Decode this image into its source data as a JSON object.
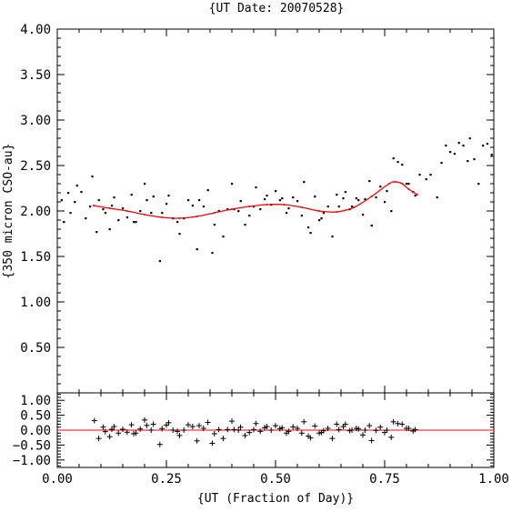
{
  "chart_data": [
    {
      "type": "scatter",
      "panel": "main",
      "title": "{UT Date: 20070528}",
      "xlabel": "",
      "ylabel": "{350 micron CSO-au}",
      "xlim": [
        0.0,
        1.0
      ],
      "ylim": [
        0.0,
        4.0
      ],
      "x_ticks": [
        0.0,
        0.25,
        0.5,
        0.75,
        1.0
      ],
      "y_ticks": [
        "0.50",
        "1.00",
        "1.50",
        "2.00",
        "2.50",
        "3.00",
        "3.50",
        "4.00"
      ],
      "grid": false,
      "series": [
        {
          "kind": "points",
          "color": "#000000",
          "x": [
            0.01,
            0.015,
            0.025,
            0.03,
            0.04,
            0.045,
            0.055,
            0.065,
            0.075,
            0.08,
            0.09,
            0.095,
            0.105,
            0.11,
            0.12,
            0.125,
            0.13,
            0.14,
            0.15,
            0.16,
            0.17,
            0.175,
            0.18,
            0.19,
            0.2,
            0.205,
            0.215,
            0.22,
            0.235,
            0.24,
            0.25,
            0.255,
            0.265,
            0.275,
            0.28,
            0.29,
            0.3,
            0.31,
            0.32,
            0.325,
            0.335,
            0.345,
            0.355,
            0.36,
            0.37,
            0.38,
            0.39,
            0.4,
            0.405,
            0.415,
            0.42,
            0.43,
            0.44,
            0.45,
            0.455,
            0.465,
            0.475,
            0.48,
            0.49,
            0.5,
            0.51,
            0.515,
            0.525,
            0.53,
            0.54,
            0.55,
            0.56,
            0.565,
            0.575,
            0.58,
            0.59,
            0.6,
            0.605,
            0.61,
            0.62,
            0.63,
            0.64,
            0.645,
            0.655,
            0.66,
            0.67,
            0.675,
            0.685,
            0.69,
            0.7,
            0.705,
            0.715,
            0.72,
            0.73,
            0.74,
            0.75,
            0.755,
            0.765,
            0.77,
            0.78,
            0.79,
            0.8,
            0.805,
            0.815,
            0.82,
            0.83,
            0.845,
            0.855,
            0.87,
            0.88,
            0.89,
            0.9,
            0.91,
            0.92,
            0.93,
            0.94,
            0.945,
            0.955,
            0.965,
            0.975,
            0.985,
            0.995
          ],
          "y": [
            2.12,
            1.88,
            2.2,
            1.98,
            2.1,
            2.28,
            2.21,
            1.92,
            2.05,
            2.38,
            1.77,
            2.12,
            2.02,
            1.98,
            1.8,
            2.06,
            2.15,
            1.9,
            2.03,
            1.93,
            2.18,
            1.88,
            1.88,
            2.0,
            2.3,
            2.12,
            1.98,
            2.16,
            1.45,
            1.98,
            2.08,
            2.17,
            1.92,
            1.88,
            1.75,
            1.92,
            2.12,
            2.06,
            1.58,
            2.12,
            2.05,
            2.23,
            1.54,
            1.85,
            2.0,
            1.72,
            2.02,
            2.3,
            2.02,
            2.0,
            2.11,
            1.85,
            1.95,
            2.05,
            2.26,
            2.02,
            2.13,
            2.17,
            2.07,
            2.22,
            2.12,
            2.14,
            1.98,
            2.03,
            2.15,
            2.11,
            1.95,
            2.32,
            1.82,
            1.76,
            2.16,
            1.9,
            1.92,
            1.98,
            2.05,
            1.72,
            2.18,
            2.05,
            2.14,
            2.21,
            2.02,
            2.05,
            2.14,
            2.12,
            1.96,
            2.13,
            2.33,
            1.84,
            2.15,
            2.27,
            2.1,
            2.22,
            2.0,
            2.58,
            2.54,
            2.51,
            2.3,
            2.3,
            2.21,
            2.17,
            2.4,
            2.35,
            2.4,
            2.15,
            2.53,
            2.72,
            2.65,
            2.63,
            2.75,
            2.72,
            2.55,
            2.8,
            2.57,
            2.3,
            2.72,
            2.74,
            2.62
          ]
        },
        {
          "kind": "fit",
          "color": "#ff0000",
          "x": [
            0.083,
            0.12,
            0.16,
            0.2,
            0.24,
            0.28,
            0.32,
            0.36,
            0.4,
            0.44,
            0.48,
            0.52,
            0.56,
            0.6,
            0.64,
            0.68,
            0.72,
            0.76,
            0.775,
            0.79,
            0.805,
            0.825
          ],
          "y": [
            2.06,
            2.03,
            2.0,
            1.96,
            1.93,
            1.92,
            1.94,
            1.98,
            2.02,
            2.05,
            2.07,
            2.07,
            2.04,
            2.0,
            1.99,
            2.04,
            2.16,
            2.3,
            2.32,
            2.3,
            2.24,
            2.18
          ]
        }
      ]
    },
    {
      "type": "scatter",
      "panel": "residuals",
      "xlabel": "{UT (Fraction of Day)}",
      "ylabel": "",
      "xlim": [
        0.0,
        1.0
      ],
      "ylim": [
        -1.25,
        1.25
      ],
      "x_ticks": [
        "0.00",
        "0.25",
        "0.50",
        "0.75",
        "1.00"
      ],
      "y_ticks": [
        "−1.00",
        "−0.50",
        "0.00",
        "0.50",
        "1.00"
      ],
      "grid": false,
      "series": [
        {
          "kind": "residual-points",
          "marker": "+",
          "color": "#000000",
          "x": [
            0.085,
            0.095,
            0.105,
            0.11,
            0.12,
            0.125,
            0.13,
            0.14,
            0.15,
            0.16,
            0.17,
            0.175,
            0.18,
            0.19,
            0.2,
            0.205,
            0.215,
            0.22,
            0.235,
            0.24,
            0.25,
            0.255,
            0.265,
            0.275,
            0.28,
            0.29,
            0.3,
            0.31,
            0.32,
            0.325,
            0.335,
            0.345,
            0.355,
            0.36,
            0.37,
            0.38,
            0.39,
            0.4,
            0.405,
            0.415,
            0.42,
            0.43,
            0.44,
            0.45,
            0.455,
            0.465,
            0.475,
            0.48,
            0.49,
            0.5,
            0.51,
            0.515,
            0.525,
            0.53,
            0.54,
            0.55,
            0.56,
            0.565,
            0.575,
            0.58,
            0.59,
            0.6,
            0.605,
            0.61,
            0.62,
            0.63,
            0.64,
            0.645,
            0.655,
            0.66,
            0.67,
            0.675,
            0.685,
            0.69,
            0.7,
            0.705,
            0.715,
            0.72,
            0.73,
            0.74,
            0.75,
            0.755,
            0.765,
            0.77,
            0.78,
            0.79,
            0.8,
            0.805,
            0.815,
            0.82
          ],
          "y": [
            0.32,
            -0.28,
            0.1,
            -0.05,
            -0.22,
            0.03,
            0.12,
            -0.1,
            0.03,
            -0.07,
            0.18,
            -0.12,
            -0.1,
            0.04,
            0.34,
            0.16,
            0.0,
            0.2,
            -0.48,
            0.05,
            0.17,
            0.25,
            0.0,
            -0.04,
            -0.18,
            0.0,
            0.18,
            0.12,
            -0.36,
            0.15,
            0.06,
            0.26,
            -0.44,
            -0.12,
            0.02,
            -0.28,
            0.02,
            0.3,
            0.02,
            0.0,
            0.1,
            -0.18,
            -0.08,
            0.02,
            0.22,
            -0.04,
            0.08,
            0.12,
            0.0,
            0.15,
            0.05,
            0.08,
            -0.1,
            -0.04,
            0.11,
            0.06,
            -0.1,
            0.28,
            -0.2,
            -0.26,
            0.14,
            -0.1,
            -0.08,
            -0.02,
            0.06,
            -0.28,
            0.2,
            0.02,
            0.12,
            0.2,
            -0.02,
            0.0,
            0.06,
            0.04,
            -0.16,
            0.0,
            0.15,
            -0.35,
            -0.01,
            0.1,
            -0.08,
            0.0,
            -0.24,
            0.28,
            0.22,
            0.2,
            0.06,
            0.06,
            -0.03,
            0.02
          ]
        },
        {
          "kind": "zero-line",
          "color": "#ff0000",
          "y": 0.0
        }
      ]
    }
  ]
}
